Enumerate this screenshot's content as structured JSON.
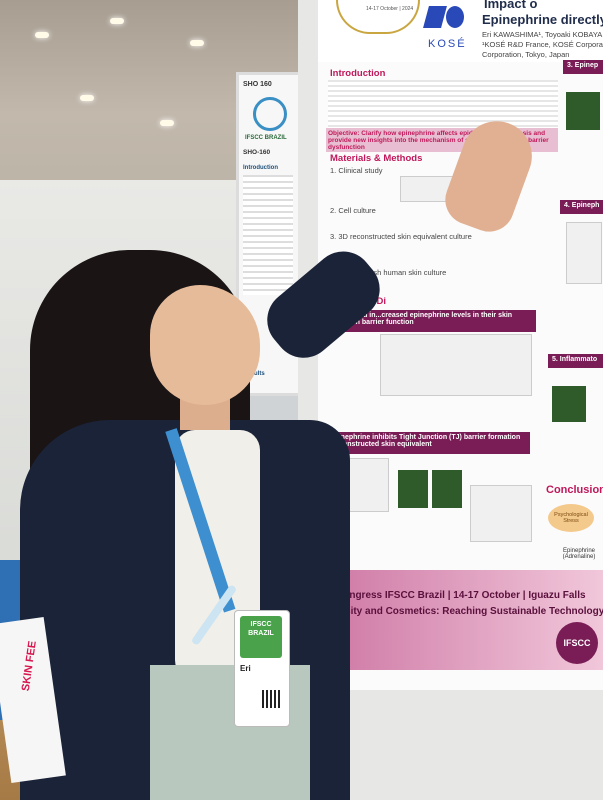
{
  "neighbor_poster": {
    "tag": "SHO 160",
    "tag2": "SHO-160",
    "logo_text": "IFSCC BRAZIL",
    "section_1": "Introduction",
    "section_2": "Results"
  },
  "poster": {
    "title_fragment_1": "Impact o",
    "title_fragment_2": "Epinephrine directly",
    "date_fragment": "14-17 October | 2024",
    "brand": "KOSÉ",
    "authors": "Eri KAWASHIMA¹, Toyoaki KOBAYA",
    "affiliation_1": "¹KOSÉ R&D France, KOSÉ Corpora",
    "affiliation_2": "Corporation, Tokyo, Japan",
    "section_introduction": "Introduction",
    "objective": "Objective: Clarify how epinephrine affects epidermal homeostasis and provide new insights into the mechanism of stress-induced skin barrier dysfunction",
    "section_methods": "Materials & Methods",
    "method_1": "1. Clinical study",
    "method_2": "2. Cell culture",
    "method_3": "3. 3D reconstructed skin equivalent culture",
    "method_4": "4. Ex vivo fresh human skin culture",
    "section_results": "Results & Di",
    "result_bar_1": "1. Stressed in...creased epinephrine levels in their skin alo...skin barrier function",
    "result_bar_2": "2. Epinephrine inhibits Tight Junction (TJ) barrier formation on reconstructed skin equivalent",
    "right_bar_3": "3. Epinep",
    "right_bar_4": "4. Epineph",
    "right_bar_5": "5. Inflammato",
    "conclusion": "Conclusion",
    "psych_stress": "Psychological Stress",
    "epinephrine_label": "Epinephrine (Adrenaline)",
    "footer_1": "Congress IFSCC Brazil | 14-17 October | Iguazu Falls",
    "footer_2": "versity and Cosmetics: Reaching Sustainable Technology",
    "footer_logo": "IFSCC"
  },
  "badge": {
    "logo": "IFSCC BRAZIL",
    "name_fragment": "Eri"
  },
  "left_paper": {
    "text": "SKIN FEE"
  }
}
